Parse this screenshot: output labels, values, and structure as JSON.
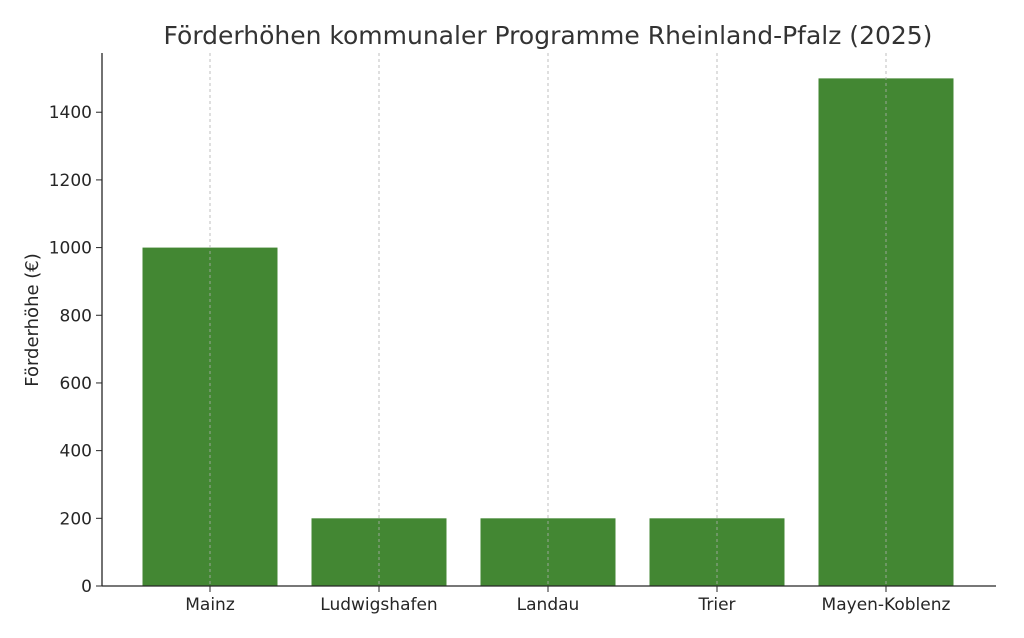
{
  "chart_data": {
    "type": "bar",
    "title": "Förderhöhen kommunaler Programme Rheinland-Pfalz (2025)",
    "xlabel": "",
    "ylabel": "Förderhöhe (€)",
    "categories": [
      "Mainz",
      "Ludwigshafen",
      "Landau",
      "Trier",
      "Mayen-Koblenz"
    ],
    "values": [
      1000,
      200,
      200,
      200,
      1500
    ],
    "ylim": [
      0,
      1575
    ],
    "yticks": [
      "0",
      "200",
      "400",
      "600",
      "800",
      "1000",
      "1200",
      "1400"
    ],
    "grid": "vertical dashed",
    "bar_color": "#438733"
  }
}
